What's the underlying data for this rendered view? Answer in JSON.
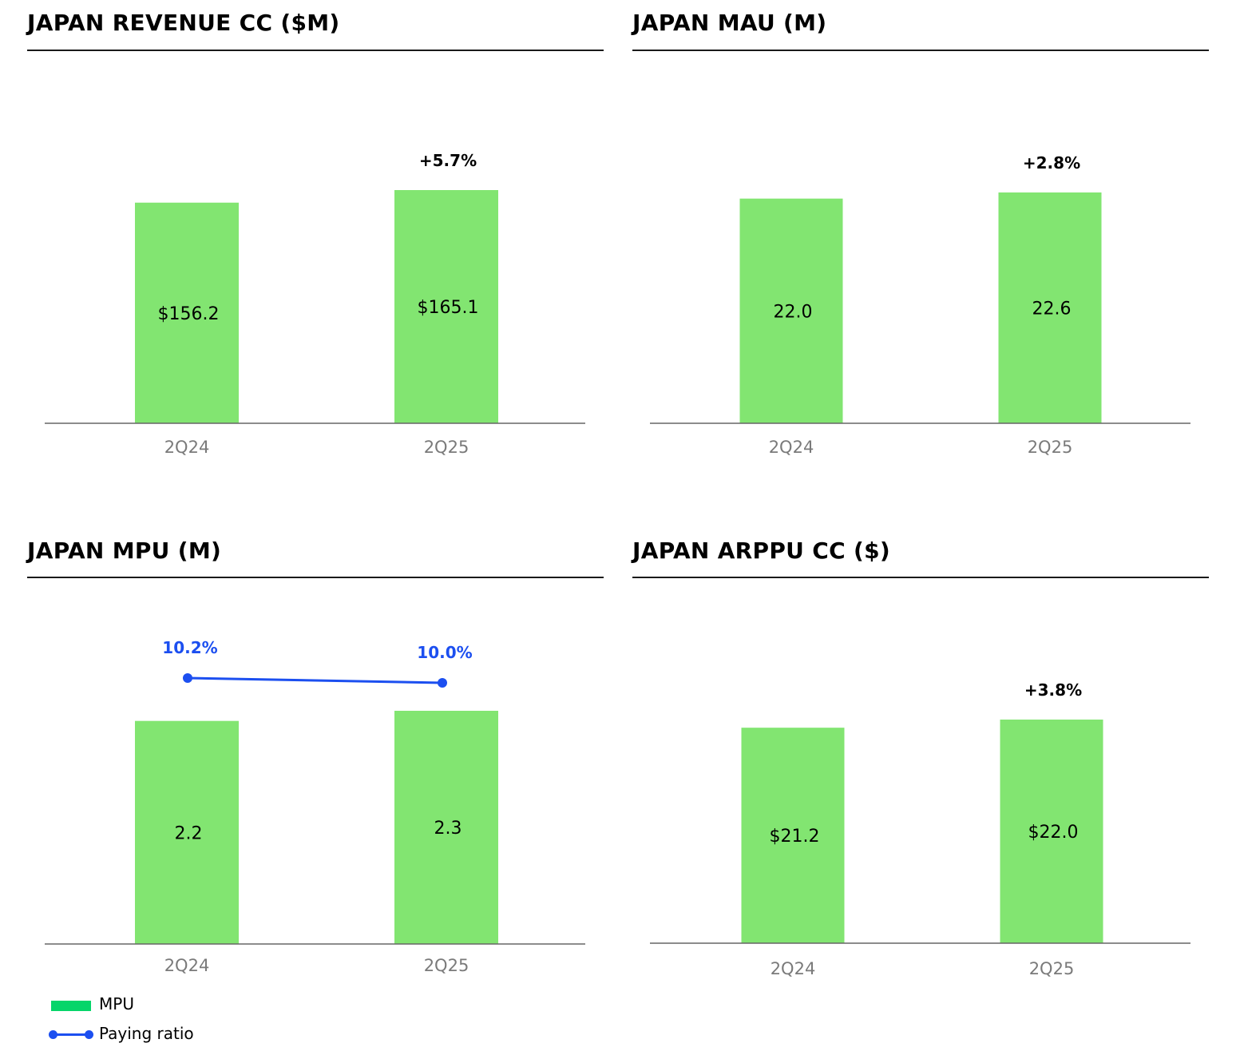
{
  "colors": {
    "bar": "#82e571",
    "line": "#1c4ff0",
    "axis": "#666666",
    "tick": "#7a7a7a",
    "legend_bar": "#06d56a"
  },
  "legend": {
    "bar_label": "MPU",
    "line_label": "Paying ratio"
  },
  "chart_data": [
    {
      "type": "bar",
      "title": "JAPAN REVENUE CC ($M)",
      "categories": [
        "2Q24",
        "2Q25"
      ],
      "values": [
        156.2,
        165.1
      ],
      "data_labels": [
        "$156.2",
        "$165.1"
      ],
      "growth_label": "+5.7%"
    },
    {
      "type": "bar",
      "title": "JAPAN MAU (M)",
      "categories": [
        "2Q24",
        "2Q25"
      ],
      "values": [
        22.0,
        22.6
      ],
      "data_labels": [
        "22.0",
        "22.6"
      ],
      "growth_label": "+2.8%"
    },
    {
      "type": "bar",
      "title": "JAPAN MPU (M)",
      "categories": [
        "2Q24",
        "2Q25"
      ],
      "series": [
        {
          "name": "MPU",
          "type": "bar",
          "values": [
            2.2,
            2.3
          ],
          "data_labels": [
            "2.2",
            "2.3"
          ]
        },
        {
          "name": "Paying ratio",
          "type": "line",
          "values": [
            10.2,
            10.0
          ],
          "data_labels": [
            "10.2%",
            "10.0%"
          ]
        }
      ]
    },
    {
      "type": "bar",
      "title": "JAPAN ARPPU CC ($)",
      "categories": [
        "2Q24",
        "2Q25"
      ],
      "values": [
        21.2,
        22.0
      ],
      "data_labels": [
        "$21.2",
        "$22.0"
      ],
      "growth_label": "+3.8%"
    }
  ]
}
